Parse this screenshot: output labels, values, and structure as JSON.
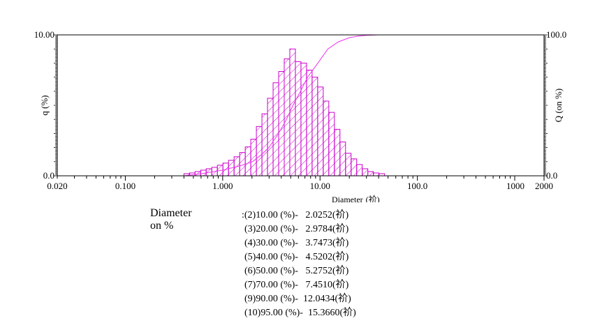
{
  "chart_data": {
    "type": "bar",
    "x_scale": "log",
    "xlim": [
      0.02,
      2000
    ],
    "ylim_left": [
      0,
      10
    ],
    "ylim_right": [
      0,
      100
    ],
    "xlabel": "Diameter",
    "xlabel_unit": "(祄)",
    "ylabel_left": "q (%)",
    "ylabel_right": "Q (on %)",
    "y_left_ticks": [
      "10.00",
      "0.0"
    ],
    "y_right_ticks": [
      "100.0",
      "0.0"
    ],
    "x_ticks": [
      {
        "value": 0.02,
        "label": "0.020"
      },
      {
        "value": 0.1,
        "label": "0.100"
      },
      {
        "value": 1,
        "label": "1.000"
      },
      {
        "value": 10,
        "label": "10.00"
      },
      {
        "value": 100,
        "label": "100.0"
      },
      {
        "value": 1000,
        "label": "1000"
      },
      {
        "value": 2000,
        "label": "2000"
      }
    ],
    "bin_edges": [
      0.4,
      0.456,
      0.52,
      0.594,
      0.677,
      0.773,
      0.882,
      1.006,
      1.148,
      1.31,
      1.494,
      1.705,
      1.945,
      2.219,
      2.532,
      2.889,
      3.296,
      3.76,
      4.29,
      4.894,
      5.584,
      6.371,
      7.269,
      8.293,
      9.461,
      10.79,
      12.31,
      14.05,
      16.03,
      18.29,
      20.86,
      23.8,
      27.16,
      30.98,
      35.35,
      40.33,
      46.0
    ],
    "values": [
      0.15,
      0.2,
      0.3,
      0.4,
      0.5,
      0.6,
      0.75,
      0.9,
      1.1,
      1.35,
      1.65,
      2.05,
      2.6,
      3.5,
      4.4,
      5.5,
      6.6,
      7.4,
      8.3,
      9.0,
      8.1,
      8.0,
      7.5,
      7.0,
      6.3,
      5.3,
      4.5,
      3.3,
      2.4,
      1.6,
      1.2,
      0.8,
      0.5,
      0.3,
      0.2,
      0.15
    ],
    "cumulative": {
      "name": "Q",
      "x": [
        0.4,
        0.6,
        1.0,
        1.5,
        2.0253,
        2.5,
        2.9784,
        3.7473,
        4.5202,
        5.2752,
        6.3,
        7.451,
        9.5,
        12.0434,
        15.366,
        20,
        25,
        30,
        40,
        46
      ],
      "y": [
        0,
        1.5,
        4,
        7,
        10,
        15,
        20,
        30,
        40,
        50,
        60,
        70,
        80,
        90,
        95,
        98,
        99.2,
        99.7,
        100,
        100
      ]
    }
  },
  "results": {
    "label": "Diameter on %",
    "lines": [
      ":(2)10.00 (%)-   2.0252(祄)",
      "(3)20.00 (%)-   2.9784(祄)",
      "(4)30.00 (%)-   3.7473(祄)",
      "(5)40.00 (%)-   4.5202(祄)",
      "(6)50.00 (%)-   5.2752(祄)",
      "(7)70.00 (%)-   7.4510(祄)",
      "(9)90.00 (%)-  12.0434(祄)",
      "(10)95.00 (%)-  15.3660(祄)"
    ]
  },
  "colors": {
    "bars": "#cc00cc",
    "curve": "#ee33ee",
    "axis": "#000000"
  }
}
